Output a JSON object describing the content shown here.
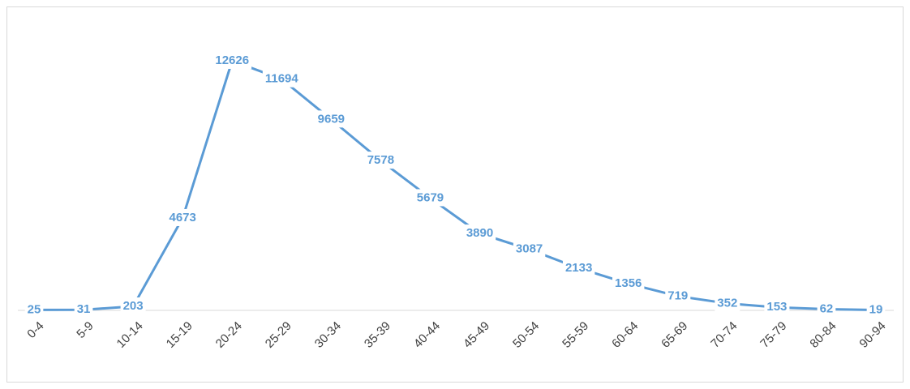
{
  "chart_data": {
    "type": "line",
    "categories": [
      "0-4",
      "5-9",
      "10-14",
      "15-19",
      "20-24",
      "25-29",
      "30-34",
      "35-39",
      "40-44",
      "45-49",
      "50-54",
      "55-59",
      "60-64",
      "65-69",
      "70-74",
      "75-79",
      "80-84",
      "90-94"
    ],
    "values": [
      25,
      31,
      203,
      4673,
      12626,
      11694,
      9659,
      7578,
      5679,
      3890,
      3087,
      2133,
      1356,
      719,
      352,
      153,
      62,
      19
    ],
    "color": "#5b9bd5"
  }
}
